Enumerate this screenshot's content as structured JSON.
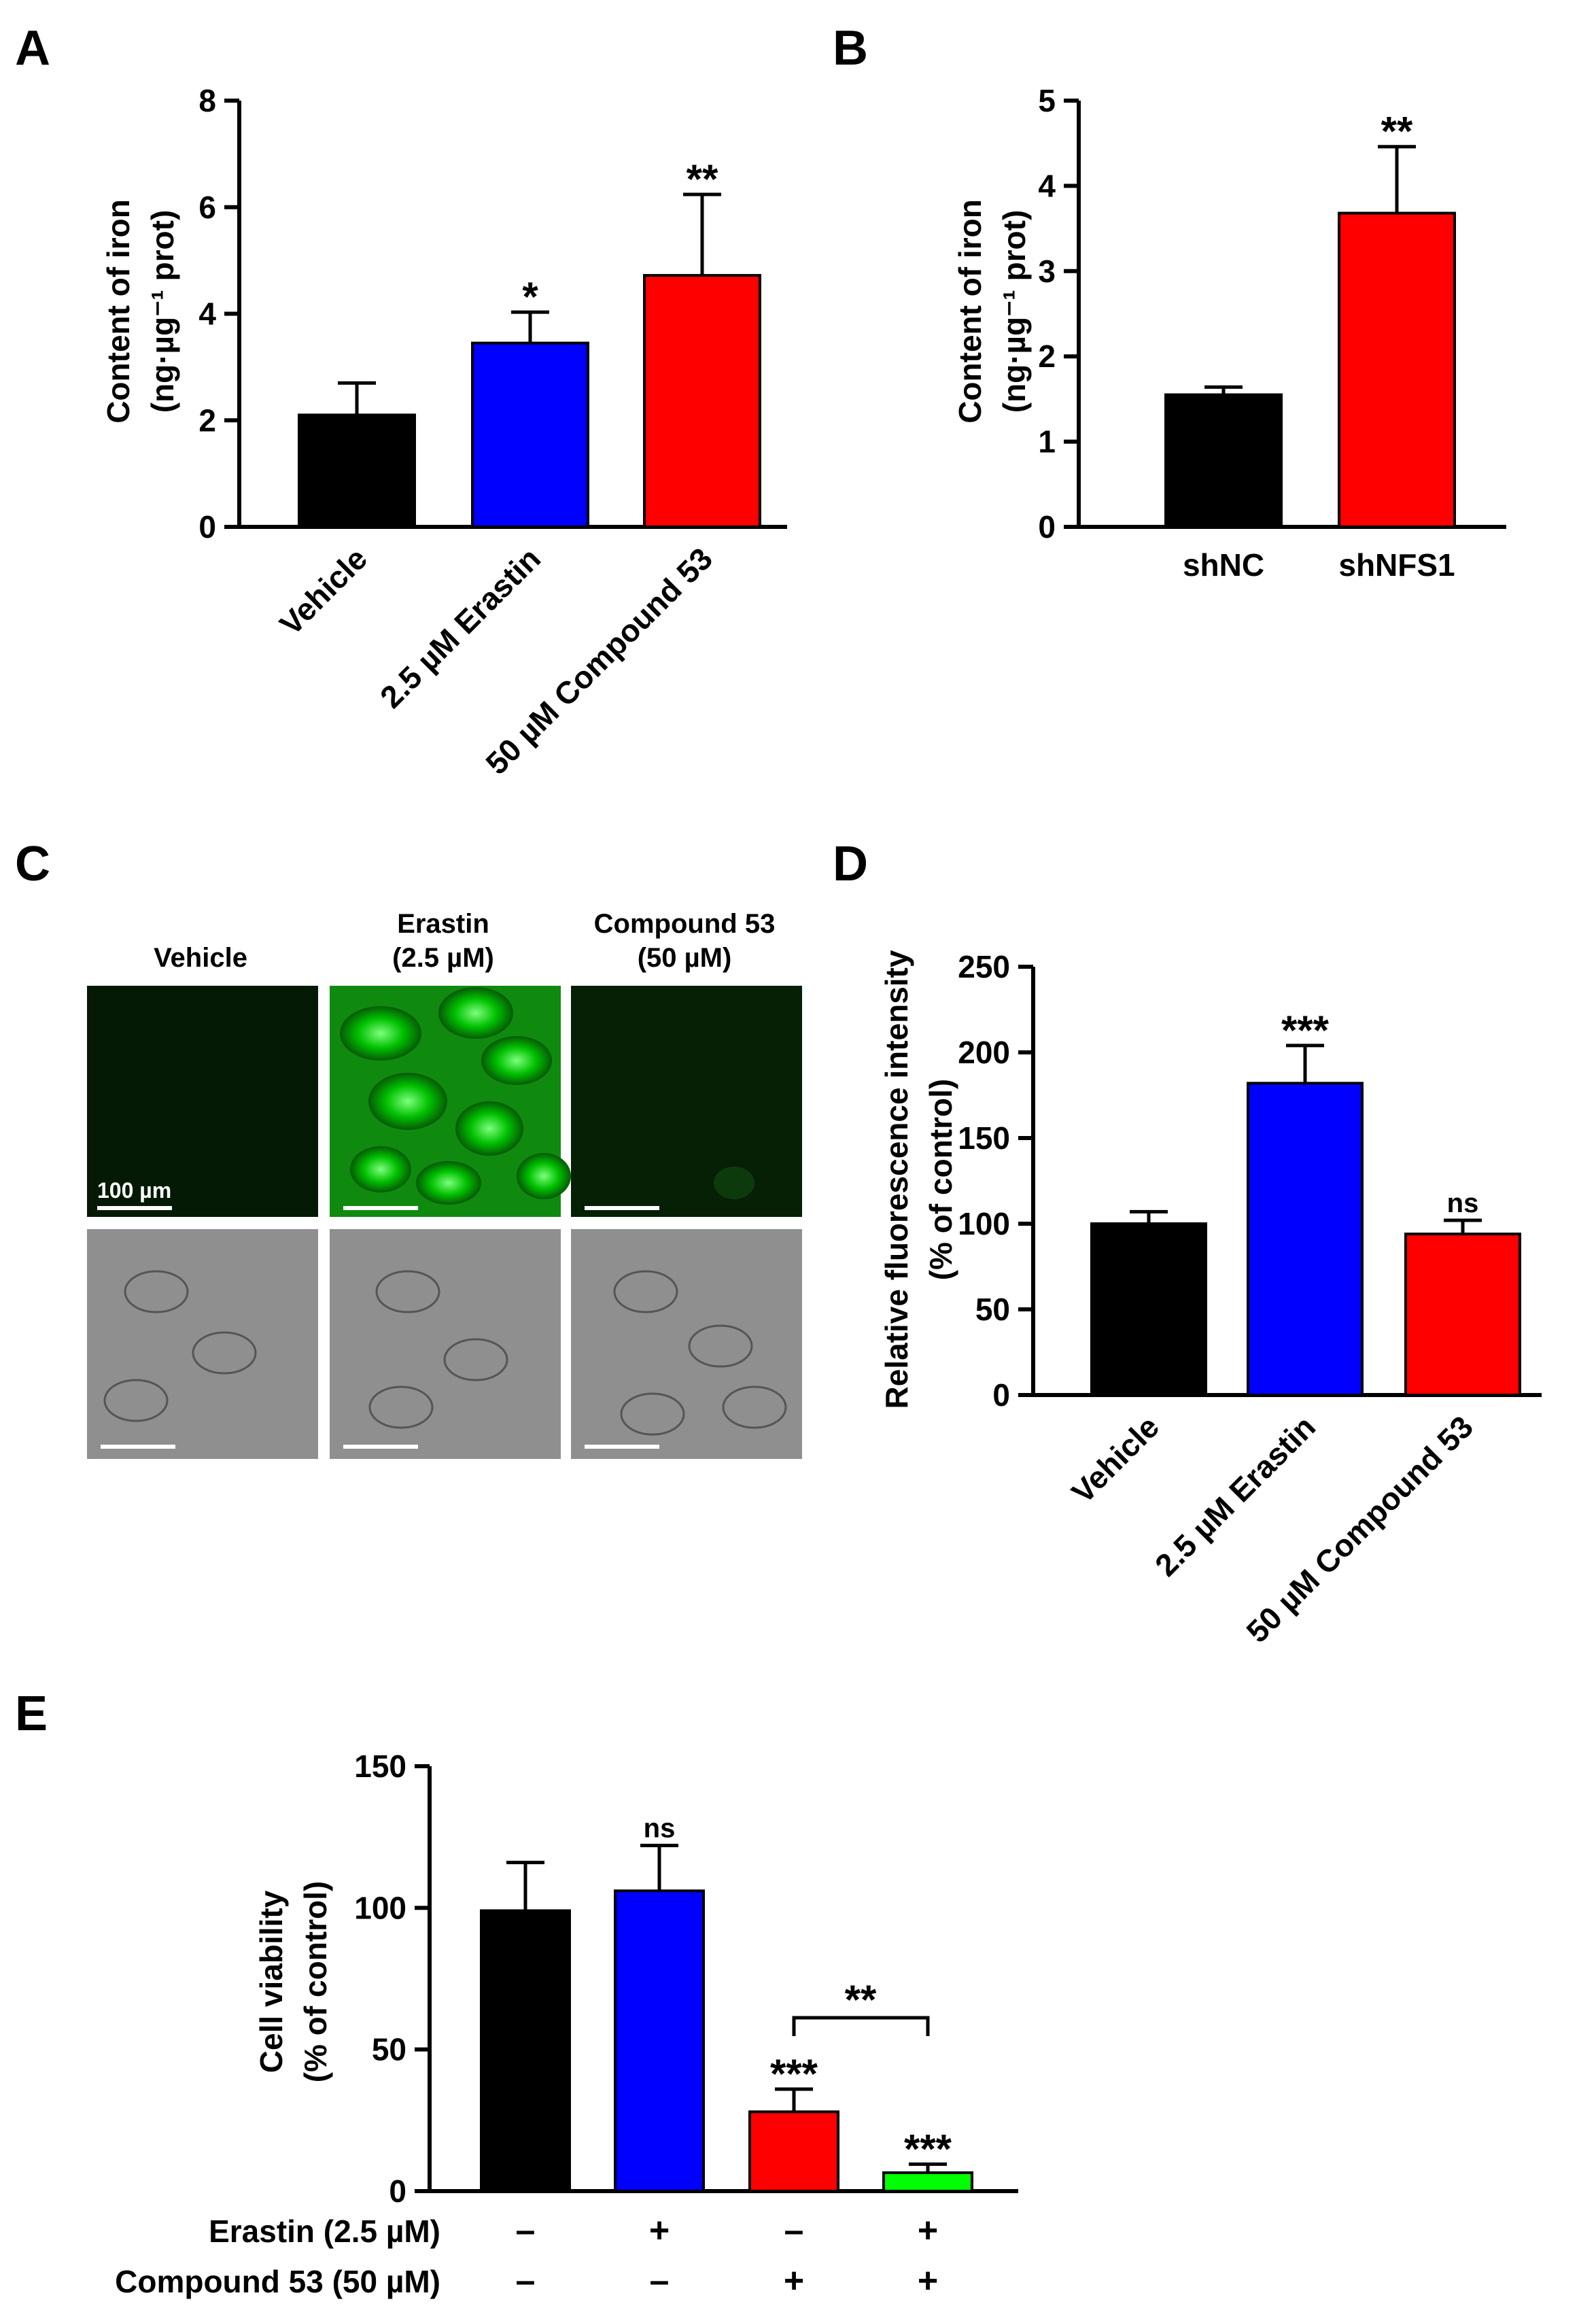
{
  "panels": {
    "A": {
      "letter": "A",
      "ylabel_line1": "Content of iron",
      "ylabel_line2": "(ng·µg⁻¹ prot)",
      "chart_data": {
        "type": "bar",
        "categories": [
          "Vehicle",
          "2.5 µM Erastin",
          "50 µM Compound 53"
        ],
        "values": [
          2.1,
          3.45,
          4.72
        ],
        "errors": [
          0.6,
          0.58,
          1.52
        ],
        "colors": [
          "#000000",
          "#0000ff",
          "#ff0000"
        ],
        "significance": [
          "",
          "*",
          "**"
        ],
        "ylim": [
          0,
          8
        ],
        "yticks": [
          0,
          2,
          4,
          6,
          8
        ],
        "tick_labels": [
          "0",
          "2",
          "4",
          "6",
          "8"
        ]
      }
    },
    "B": {
      "letter": "B",
      "ylabel_line1": "Content of iron",
      "ylabel_line2": "(ng·µg⁻¹ prot)",
      "chart_data": {
        "type": "bar",
        "categories": [
          "shNC",
          "shNFS1"
        ],
        "values": [
          1.55,
          3.68
        ],
        "errors": [
          0.09,
          0.78
        ],
        "colors": [
          "#000000",
          "#ff0000"
        ],
        "significance": [
          "",
          "**"
        ],
        "ylim": [
          0,
          5
        ],
        "yticks": [
          0,
          1,
          2,
          3,
          4,
          5
        ],
        "tick_labels": [
          "0",
          "1",
          "2",
          "3",
          "4",
          "5"
        ]
      }
    },
    "C": {
      "letter": "C",
      "col_headers": [
        {
          "line1": "Vehicle",
          "line2": ""
        },
        {
          "line1": "Erastin",
          "line2": "(2.5 µM)"
        },
        {
          "line1": "Compound 53",
          "line2": "(50 µM)"
        }
      ],
      "scale_bar_label": "100 µm",
      "fluor_color": "#00c000",
      "bright_color": "#8f8f8f"
    },
    "D": {
      "letter": "D",
      "ylabel_line1": "Relative fluorescence intensity",
      "ylabel_line2": "(% of control)",
      "chart_data": {
        "type": "bar",
        "categories": [
          "Vehicle",
          "2.5 µM Erastin",
          "50 µM Compound 53"
        ],
        "values": [
          100,
          182,
          94
        ],
        "errors": [
          7,
          22,
          8
        ],
        "colors": [
          "#000000",
          "#0000ff",
          "#ff0000"
        ],
        "significance": [
          "",
          "***",
          "ns"
        ],
        "ylim": [
          0,
          250
        ],
        "yticks": [
          0,
          50,
          100,
          150,
          200,
          250
        ],
        "tick_labels": [
          "0",
          "50",
          "100",
          "150",
          "200",
          "250"
        ]
      }
    },
    "E": {
      "letter": "E",
      "ylabel_line1": "Cell viability",
      "ylabel_line2": "(% of control)",
      "chart_data": {
        "type": "bar",
        "values": [
          99,
          106,
          28,
          6.5
        ],
        "errors": [
          17,
          16,
          8,
          3
        ],
        "colors": [
          "#000000",
          "#0000ff",
          "#ff0000",
          "#00ff00"
        ],
        "significance": [
          "",
          "ns",
          "***",
          "***"
        ],
        "bracket_label": "**",
        "ylim": [
          0,
          150
        ],
        "yticks": [
          0,
          50,
          100,
          150
        ],
        "tick_labels": [
          "0",
          "50",
          "100",
          "150"
        ],
        "treatment_rows": [
          {
            "label": "Erastin (2.5 µM)",
            "marks": [
              "–",
              "+",
              "–",
              "+"
            ]
          },
          {
            "label": "Compound 53 (50 µM)",
            "marks": [
              "–",
              "–",
              "+",
              "+"
            ]
          }
        ]
      }
    }
  }
}
